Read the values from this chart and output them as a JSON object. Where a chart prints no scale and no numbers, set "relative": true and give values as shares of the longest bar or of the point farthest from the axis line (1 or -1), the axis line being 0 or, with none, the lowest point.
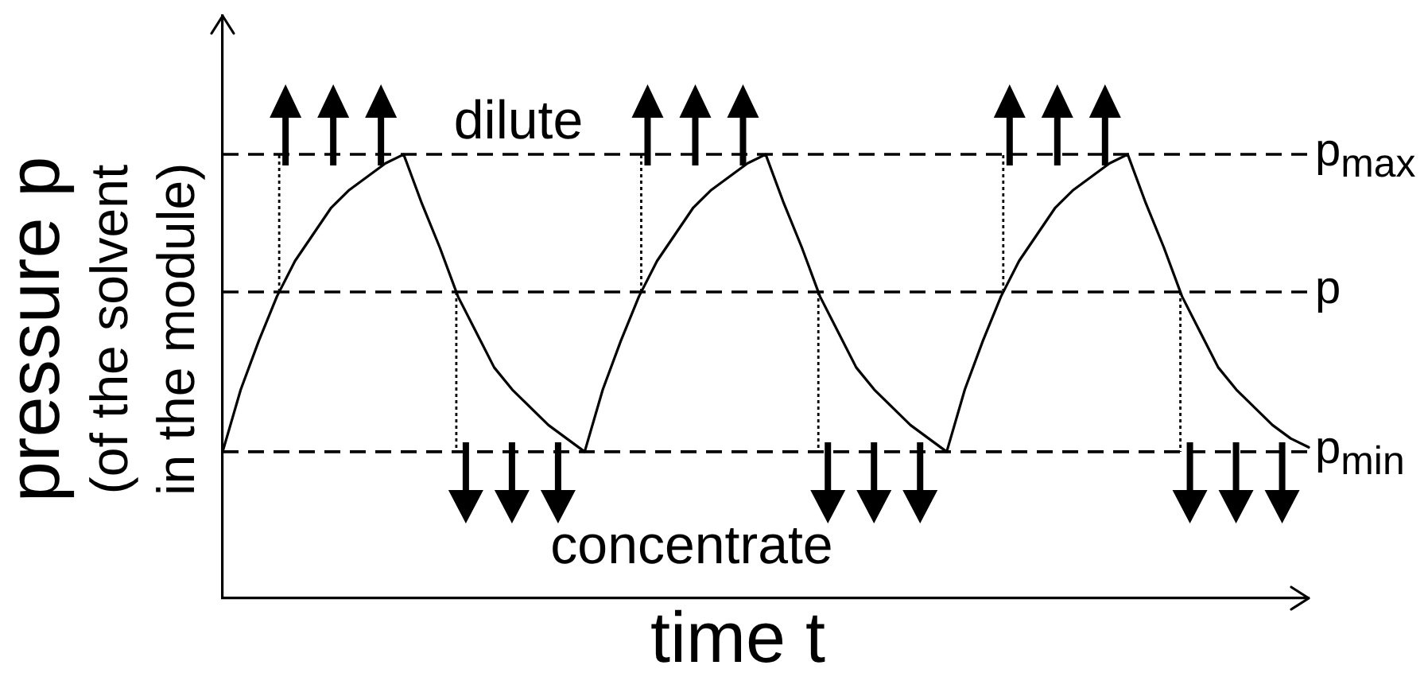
{
  "chart_data": {
    "type": "line",
    "relative": true,
    "categories": [
      null,
      null,
      null,
      null,
      null,
      null,
      null,
      null,
      null,
      null,
      null,
      null,
      null,
      null,
      null,
      null,
      null,
      null,
      null,
      null,
      null,
      null,
      null,
      null,
      null,
      null,
      null,
      null,
      null,
      null,
      null,
      null,
      null,
      null,
      null,
      null,
      null,
      null,
      null,
      null,
      null,
      null,
      null,
      null,
      null,
      null,
      null,
      null,
      null,
      null,
      null,
      null,
      null,
      null,
      null,
      null,
      null,
      null,
      null,
      null,
      null
    ],
    "values": [
      0.33,
      0.47,
      0.58,
      0.68,
      0.76,
      0.82,
      0.88,
      0.92,
      0.95,
      0.98,
      1.0,
      0.89,
      0.79,
      0.68,
      0.6,
      0.52,
      0.47,
      0.43,
      0.39,
      0.36,
      0.33,
      0.47,
      0.58,
      0.68,
      0.76,
      0.82,
      0.88,
      0.92,
      0.95,
      0.98,
      1.0,
      0.89,
      0.79,
      0.68,
      0.6,
      0.52,
      0.47,
      0.43,
      0.39,
      0.36,
      0.33,
      0.47,
      0.58,
      0.68,
      0.76,
      0.82,
      0.88,
      0.92,
      0.95,
      0.98,
      1.0,
      0.89,
      0.79,
      0.68,
      0.6,
      0.52,
      0.47,
      0.43,
      0.39,
      0.36,
      0.34
    ],
    "color": "#000000",
    "marker": "none",
    "line_style": "solid",
    "xlabel": "time t",
    "ylabel": "pressure p\n(of the solvent\nin the module)",
    "annotations": [
      "dilute",
      "concentrate"
    ],
    "ref_lines": [
      {
        "axis": "y",
        "value": 1.0,
        "label": "p$_{max}$",
        "color": "#000000",
        "line_style": "dashed"
      },
      {
        "axis": "y",
        "value": 0.69,
        "label": "p",
        "color": "#000000",
        "line_style": "dashed"
      },
      {
        "axis": "y",
        "value": 0.33,
        "label": "p$_{min}$",
        "color": "#000000",
        "line_style": "dashed"
      }
    ]
  }
}
